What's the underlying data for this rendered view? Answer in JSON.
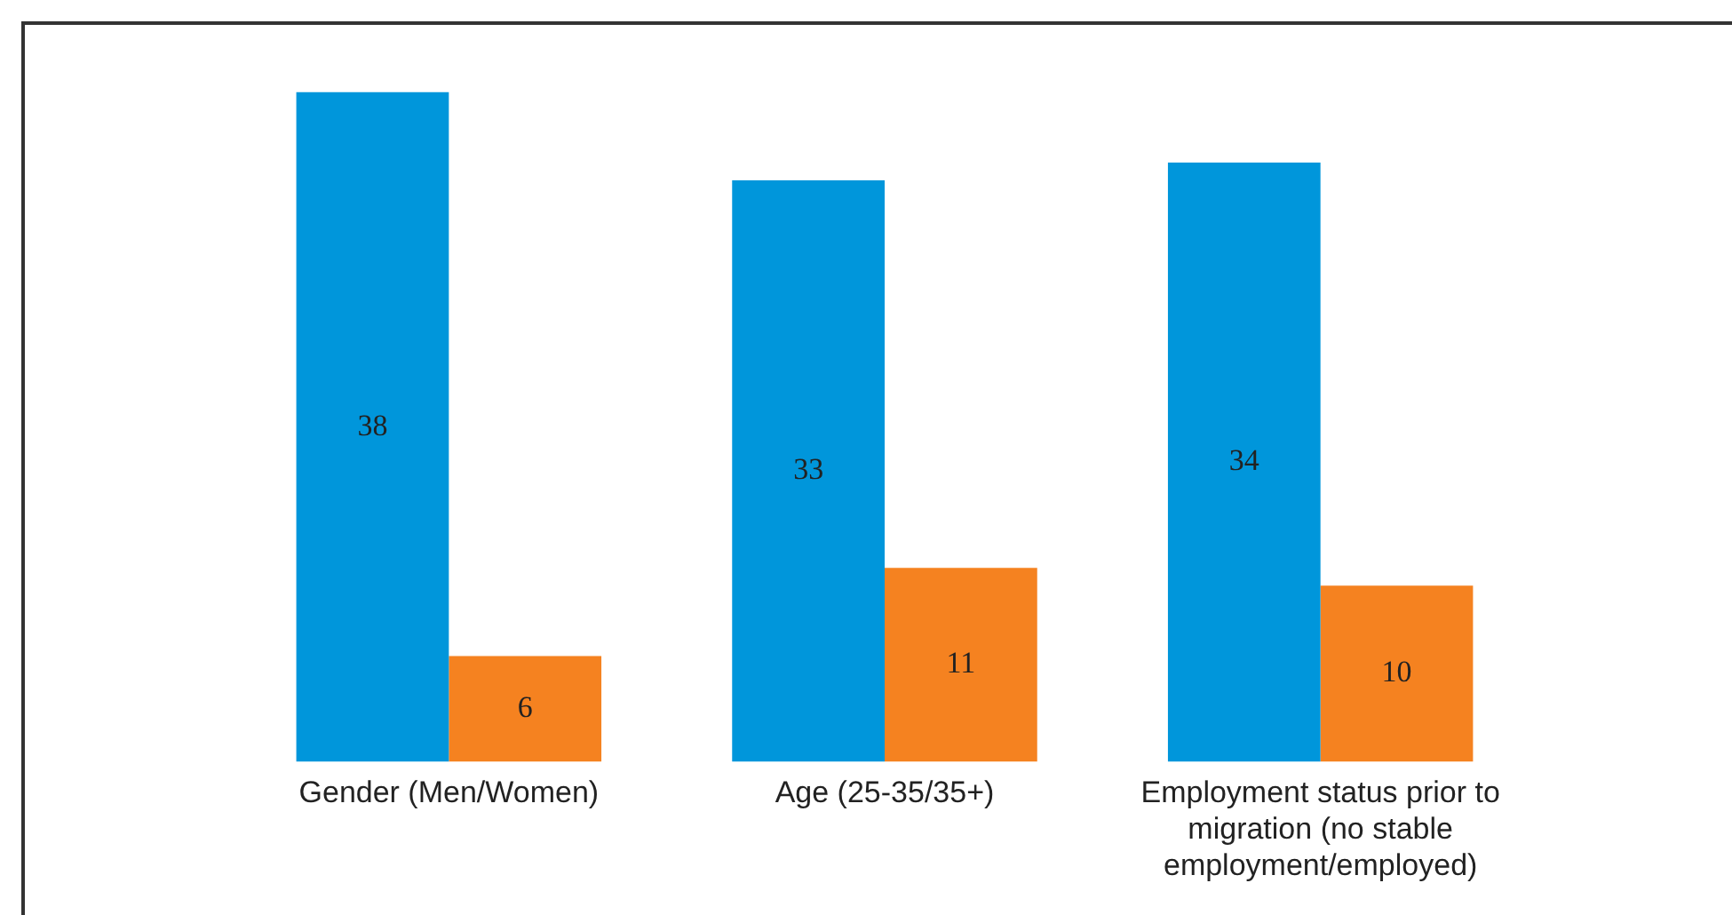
{
  "chart_data": {
    "type": "bar",
    "categories": [
      "Gender (Men/Women)",
      "Age (25-35/35+)",
      "Employment status prior to migration (no stable employment/employed)"
    ],
    "series": [
      {
        "color": "#0096db",
        "values": [
          38,
          33,
          34
        ]
      },
      {
        "color": "#f58220",
        "values": [
          6,
          11,
          10
        ]
      }
    ],
    "data_labels": true,
    "grid": false,
    "legend": false
  }
}
